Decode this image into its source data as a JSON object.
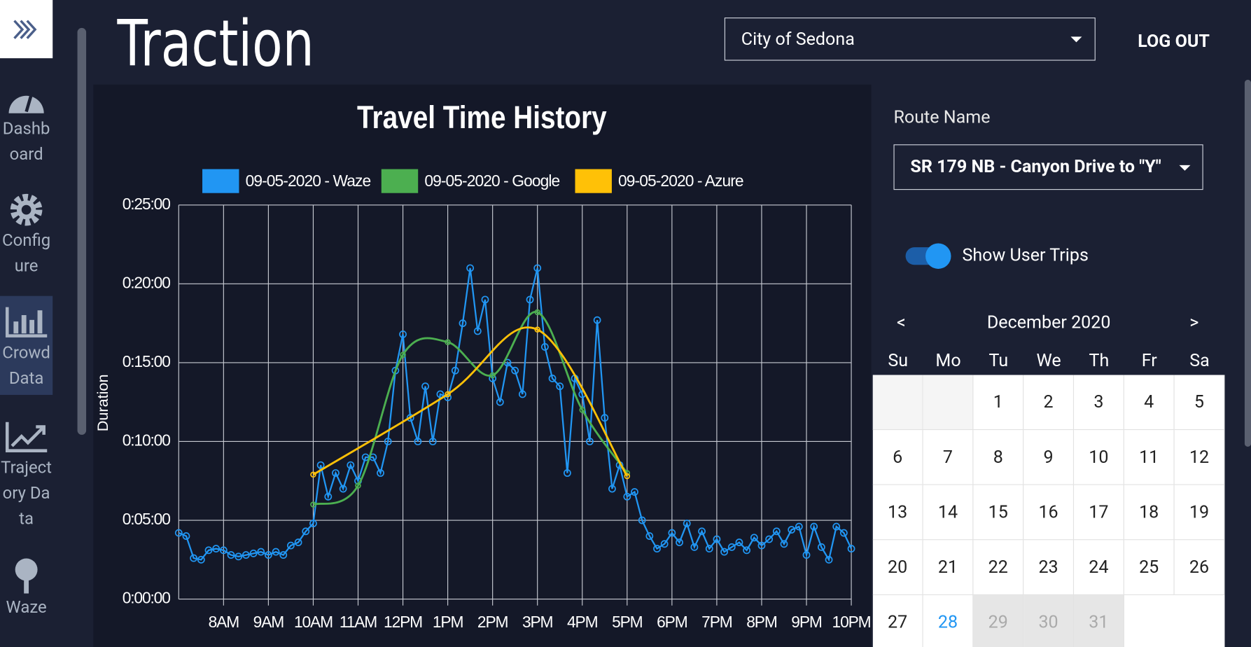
{
  "header": {
    "brand": "Traction",
    "city": "City of Sedona",
    "logout": "LOG OUT"
  },
  "sidebar": {
    "items": [
      "Dashboard",
      "Configure",
      "Crowd Data",
      "Trajectory Data",
      "Waze"
    ]
  },
  "panel": {
    "route_label": "Route Name",
    "route": "SR 179 NB - Canyon Drive to \"Y\"",
    "toggle": "Show User Trips",
    "calendar": {
      "prev": "<",
      "next": ">",
      "month": "December 2020",
      "weekdays": [
        "Su",
        "Mo",
        "Tu",
        "We",
        "Th",
        "Fr",
        "Sa"
      ],
      "leading_blanks": 2,
      "days": [
        1,
        2,
        3,
        4,
        5,
        6,
        7,
        8,
        9,
        10,
        11,
        12,
        13,
        14,
        15,
        16,
        17,
        18,
        19,
        20,
        21,
        22,
        23,
        24,
        25,
        26,
        27,
        28,
        29,
        30,
        31
      ],
      "selected_index": 27,
      "disabled_from_index": 28
    }
  },
  "chart_data": {
    "type": "line",
    "title": "Travel Time History",
    "ylabel": "Duration",
    "grid": true,
    "xlim": [
      420,
      1320
    ],
    "xticks": [
      {
        "value": 480,
        "label": "8AM"
      },
      {
        "value": 540,
        "label": "9AM"
      },
      {
        "value": 600,
        "label": "10AM"
      },
      {
        "value": 660,
        "label": "11AM"
      },
      {
        "value": 720,
        "label": "12PM"
      },
      {
        "value": 780,
        "label": "1PM"
      },
      {
        "value": 840,
        "label": "2PM"
      },
      {
        "value": 900,
        "label": "3PM"
      },
      {
        "value": 960,
        "label": "4PM"
      },
      {
        "value": 1020,
        "label": "5PM"
      },
      {
        "value": 1080,
        "label": "6PM"
      },
      {
        "value": 1140,
        "label": "7PM"
      },
      {
        "value": 1200,
        "label": "8PM"
      },
      {
        "value": 1260,
        "label": "9PM"
      },
      {
        "value": 1320,
        "label": "10PM"
      }
    ],
    "ylim": [
      0,
      25
    ],
    "yticks": [
      {
        "value": 0,
        "label": "0:00:00"
      },
      {
        "value": 5,
        "label": "0:05:00"
      },
      {
        "value": 10,
        "label": "0:10:00"
      },
      {
        "value": 15,
        "label": "0:15:00"
      },
      {
        "value": 20,
        "label": "0:20:00"
      },
      {
        "value": 25,
        "label": "0:25:00"
      }
    ],
    "series": [
      {
        "name": "09-05-2020 - Waze",
        "color": "#2196f3",
        "smooth": false,
        "x": [
          420,
          430,
          440,
          450,
          460,
          470,
          480,
          490,
          500,
          510,
          520,
          530,
          540,
          550,
          560,
          570,
          580,
          590,
          600,
          610,
          620,
          630,
          640,
          650,
          660,
          670,
          680,
          690,
          700,
          710,
          720,
          730,
          740,
          750,
          760,
          770,
          780,
          790,
          800,
          810,
          820,
          830,
          840,
          850,
          860,
          870,
          880,
          890,
          900,
          910,
          920,
          930,
          940,
          950,
          960,
          970,
          980,
          990,
          1000,
          1010,
          1020,
          1030,
          1040,
          1050,
          1060,
          1070,
          1080,
          1090,
          1100,
          1110,
          1120,
          1130,
          1140,
          1150,
          1160,
          1170,
          1180,
          1190,
          1200,
          1210,
          1220,
          1230,
          1240,
          1250,
          1260,
          1270,
          1280,
          1290,
          1300,
          1310,
          1320
        ],
        "values": [
          4.2,
          4.0,
          2.6,
          2.5,
          3.1,
          3.2,
          3.1,
          2.8,
          2.7,
          2.8,
          2.9,
          3.0,
          2.8,
          3.0,
          2.8,
          3.4,
          3.6,
          4.3,
          4.8,
          8.5,
          6.5,
          8.0,
          7.0,
          8.5,
          7.5,
          9.0,
          9.0,
          8.0,
          10.0,
          14.5,
          16.8,
          11.5,
          10.0,
          13.5,
          10.0,
          13.0,
          12.8,
          14.5,
          17.5,
          21.0,
          17.0,
          19.0,
          14.0,
          12.5,
          15.0,
          14.5,
          13.0,
          19.0,
          21.0,
          16.0,
          14.0,
          13.5,
          8.0,
          14.0,
          13.0,
          10.0,
          17.7,
          11.5,
          7.0,
          8.5,
          6.5,
          6.8,
          5.0,
          4.0,
          3.2,
          3.5,
          4.2,
          3.6,
          4.8,
          3.3,
          4.3,
          3.2,
          3.8,
          3.0,
          3.3,
          3.6,
          3.1,
          3.9,
          3.4,
          3.8,
          4.3,
          3.5,
          4.4,
          4.6,
          2.8,
          4.6,
          3.3,
          2.5,
          4.6,
          4.2,
          3.2
        ]
      },
      {
        "name": "09-05-2020 - Google",
        "color": "#4caf50",
        "smooth": true,
        "x": [
          600,
          660,
          720,
          780,
          840,
          900,
          960,
          1020
        ],
        "values": [
          6.0,
          7.2,
          15.5,
          16.3,
          14.2,
          18.2,
          12.0,
          8.0
        ]
      },
      {
        "name": "09-05-2020 - Azure",
        "color": "#ffc107",
        "smooth": true,
        "x": [
          600,
          780,
          900,
          1020
        ],
        "values": [
          7.9,
          13.0,
          17.1,
          7.8
        ]
      }
    ]
  }
}
